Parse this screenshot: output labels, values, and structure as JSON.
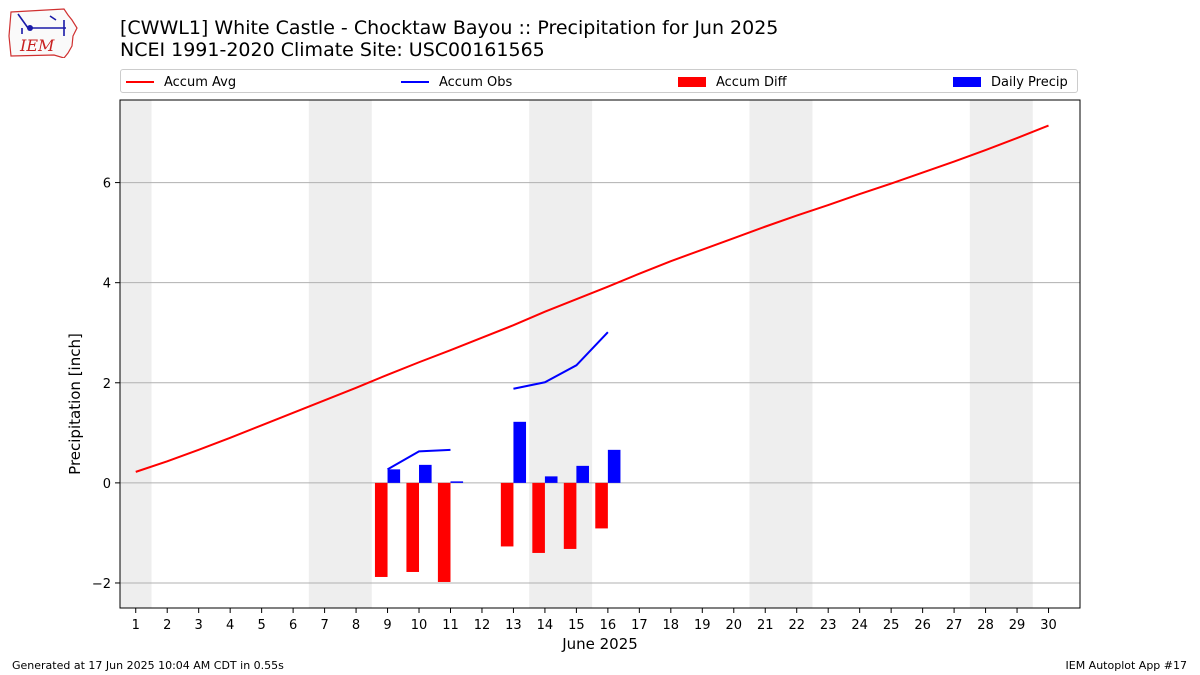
{
  "header": {
    "logo_text": "IEM",
    "title_line1": "[CWWL1] White Castle - Chocktaw Bayou :: Precipitation for Jun 2025",
    "title_line2": "NCEI 1991-2020 Climate Site: USC00161565"
  },
  "legend": {
    "items": [
      {
        "label": "Accum Avg",
        "color": "#ff0000",
        "kind": "line"
      },
      {
        "label": "Accum Obs",
        "color": "#0000ff",
        "kind": "line"
      },
      {
        "label": "Accum Diff",
        "color": "#ff0000",
        "kind": "patch"
      },
      {
        "label": "Daily Precip",
        "color": "#0000ff",
        "kind": "patch"
      }
    ]
  },
  "footer": {
    "left": "Generated at 17 Jun 2025 10:04 AM CDT in 0.55s",
    "right": "IEM Autoplot App #17"
  },
  "chart_data": {
    "type": "bar",
    "xlabel": "June 2025",
    "ylabel": "Precipitation [inch]",
    "xlim": [
      0.5,
      31.0
    ],
    "ylim": [
      -2.5,
      7.65
    ],
    "yticks": [
      -2,
      0,
      2,
      4,
      6
    ],
    "ytick_labels": [
      "−2",
      "0",
      "2",
      "4",
      "6"
    ],
    "grid": "horizontal",
    "weekend_bands": [
      [
        0.5,
        1.5
      ],
      [
        6.5,
        8.5
      ],
      [
        13.5,
        15.5
      ],
      [
        20.5,
        22.5
      ],
      [
        27.5,
        29.5
      ]
    ],
    "days": [
      1,
      2,
      3,
      4,
      5,
      6,
      7,
      8,
      9,
      10,
      11,
      12,
      13,
      14,
      15,
      16,
      17,
      18,
      19,
      20,
      21,
      22,
      23,
      24,
      25,
      26,
      27,
      28,
      29,
      30
    ],
    "series": [
      {
        "name": "Accum Avg",
        "kind": "line",
        "color": "#ff0000",
        "values": [
          0.22,
          0.43,
          0.66,
          0.9,
          1.15,
          1.4,
          1.65,
          1.9,
          2.16,
          2.41,
          2.65,
          2.9,
          3.15,
          3.42,
          3.67,
          3.92,
          4.18,
          4.43,
          4.66,
          4.89,
          5.12,
          5.34,
          5.55,
          5.77,
          5.98,
          6.2,
          6.42,
          6.65,
          6.89,
          7.14
        ]
      },
      {
        "name": "Accum Obs",
        "kind": "line",
        "color": "#0000ff",
        "values": [
          null,
          null,
          null,
          null,
          null,
          null,
          null,
          null,
          0.27,
          0.63,
          0.66,
          null,
          1.88,
          2.01,
          2.35,
          3.01,
          null,
          null,
          null,
          null,
          null,
          null,
          null,
          null,
          null,
          null,
          null,
          null,
          null,
          null
        ]
      },
      {
        "name": "Accum Diff",
        "kind": "bar",
        "color": "#ff0000",
        "values": [
          null,
          null,
          null,
          null,
          null,
          null,
          null,
          null,
          -1.88,
          -1.78,
          -1.98,
          null,
          -1.27,
          -1.4,
          -1.32,
          -0.91,
          null,
          null,
          null,
          null,
          null,
          null,
          null,
          null,
          null,
          null,
          null,
          null,
          null,
          null
        ]
      },
      {
        "name": "Daily Precip",
        "kind": "bar",
        "color": "#0000ff",
        "values": [
          null,
          null,
          null,
          null,
          null,
          null,
          null,
          null,
          0.27,
          0.36,
          0.03,
          null,
          1.22,
          0.13,
          0.34,
          0.66,
          null,
          null,
          null,
          null,
          null,
          null,
          null,
          null,
          null,
          null,
          null,
          null,
          null,
          null
        ]
      }
    ]
  }
}
